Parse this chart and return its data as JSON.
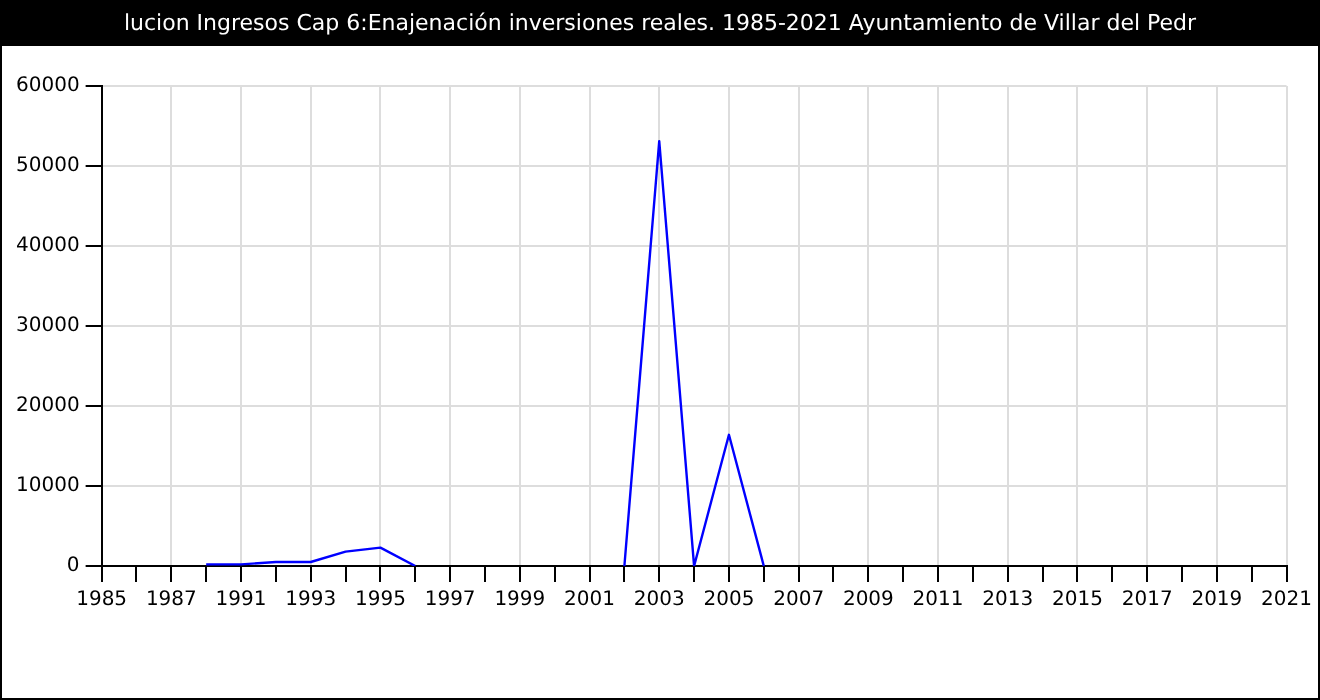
{
  "chart_data": {
    "type": "line",
    "title": "lucion Ingresos Cap 6:Enajenación inversiones reales. 1985-2021 Ayuntamiento de Villar del Pedr",
    "categories": [
      "1985",
      null,
      "1987",
      null,
      "1991",
      null,
      "1993",
      null,
      "1995",
      null,
      "1997",
      null,
      "1999",
      null,
      "2001",
      null,
      "2003",
      null,
      "2005",
      null,
      "2007",
      null,
      "2009",
      null,
      "2011",
      null,
      "2013",
      null,
      "2015",
      null,
      "2017",
      null,
      "2019",
      null,
      "2021"
    ],
    "series": [
      {
        "color": "#0000ff",
        "values": [
          null,
          null,
          null,
          200,
          200,
          500,
          500,
          1800,
          2300,
          0,
          null,
          null,
          null,
          null,
          null,
          0,
          53100,
          0,
          16400,
          0,
          null,
          null,
          null,
          null,
          null,
          null,
          null,
          null,
          null,
          null,
          null,
          null,
          null,
          null,
          null
        ]
      }
    ],
    "ylim": [
      0,
      60000
    ],
    "yticks": [
      0,
      10000,
      20000,
      30000,
      40000,
      50000,
      60000
    ],
    "grid": true,
    "legend": false,
    "marker": "none",
    "line_style": "solid"
  }
}
